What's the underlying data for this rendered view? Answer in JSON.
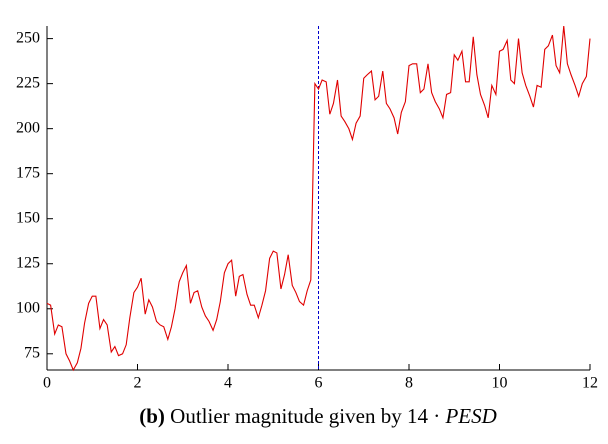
{
  "chart_data": {
    "type": "line",
    "caption_label": "(b)",
    "caption": "Outlier magnitude given by 14 ·",
    "caption_math": "PESD",
    "x": [
      0,
      0.08,
      0.17,
      0.25,
      0.33,
      0.42,
      0.5,
      0.58,
      0.67,
      0.75,
      0.83,
      0.92,
      1,
      1.08,
      1.17,
      1.25,
      1.33,
      1.42,
      1.5,
      1.58,
      1.67,
      1.75,
      1.83,
      1.92,
      2,
      2.08,
      2.17,
      2.25,
      2.33,
      2.42,
      2.5,
      2.58,
      2.67,
      2.75,
      2.83,
      2.92,
      3,
      3.08,
      3.17,
      3.25,
      3.33,
      3.42,
      3.5,
      3.58,
      3.67,
      3.75,
      3.83,
      3.92,
      4,
      4.08,
      4.17,
      4.25,
      4.33,
      4.42,
      4.5,
      4.58,
      4.67,
      4.75,
      4.83,
      4.92,
      5,
      5.08,
      5.17,
      5.25,
      5.33,
      5.42,
      5.5,
      5.58,
      5.67,
      5.75,
      5.83,
      5.92,
      6,
      6.08,
      6.17,
      6.25,
      6.33,
      6.42,
      6.5,
      6.58,
      6.67,
      6.75,
      6.83,
      6.92,
      7,
      7.08,
      7.17,
      7.25,
      7.33,
      7.42,
      7.5,
      7.58,
      7.67,
      7.75,
      7.83,
      7.92,
      8,
      8.08,
      8.17,
      8.25,
      8.33,
      8.42,
      8.5,
      8.58,
      8.67,
      8.75,
      8.83,
      8.92,
      9,
      9.08,
      9.17,
      9.25,
      9.33,
      9.42,
      9.5,
      9.58,
      9.67,
      9.75,
      9.83,
      9.92,
      10,
      10.08,
      10.17,
      10.25,
      10.33,
      10.42,
      10.5,
      10.58,
      10.67,
      10.75,
      10.83,
      10.92,
      11,
      11.08,
      11.17,
      11.25,
      11.33,
      11.42,
      11.5,
      11.58,
      11.67,
      11.75,
      11.83,
      11.92,
      12
    ],
    "series": [
      {
        "color": "#e00000",
        "values": [
          103,
          102,
          86,
          91,
          90,
          75,
          71,
          66,
          70,
          78,
          92,
          103,
          107,
          107,
          89,
          94,
          91,
          76,
          79,
          74,
          75,
          80,
          95,
          109,
          112,
          117,
          97,
          105,
          101,
          93,
          91,
          90,
          83,
          90,
          100,
          115,
          120,
          124,
          103,
          109,
          110,
          101,
          96,
          93,
          88,
          94,
          104,
          120,
          125,
          127,
          107,
          118,
          119,
          108,
          102,
          102,
          95,
          102,
          110,
          128,
          132,
          131,
          111,
          119,
          130,
          113,
          109,
          104,
          102,
          110,
          116,
          225,
          222,
          227,
          226,
          208,
          214,
          227,
          207,
          204,
          200,
          194,
          203,
          207,
          228,
          230,
          232,
          216,
          218,
          232,
          214,
          211,
          206,
          197,
          209,
          215,
          235,
          236,
          236,
          220,
          222,
          236,
          220,
          215,
          211,
          206,
          219,
          220,
          241,
          238,
          243,
          226,
          226,
          251,
          230,
          219,
          213,
          206,
          224,
          219,
          243,
          244,
          249,
          227,
          225,
          250,
          231,
          224,
          218,
          212,
          224,
          223,
          244,
          246,
          252,
          235,
          231,
          257,
          236,
          230,
          224,
          218,
          225,
          229,
          250
        ]
      }
    ],
    "vline": 6,
    "vline_color": "#0000cc",
    "xlim": [
      0,
      12
    ],
    "xticks": [
      0,
      2,
      4,
      6,
      8,
      10,
      12
    ],
    "ylim": [
      66,
      257
    ],
    "yticks": [
      75,
      100,
      125,
      150,
      175,
      200,
      225,
      250
    ]
  }
}
